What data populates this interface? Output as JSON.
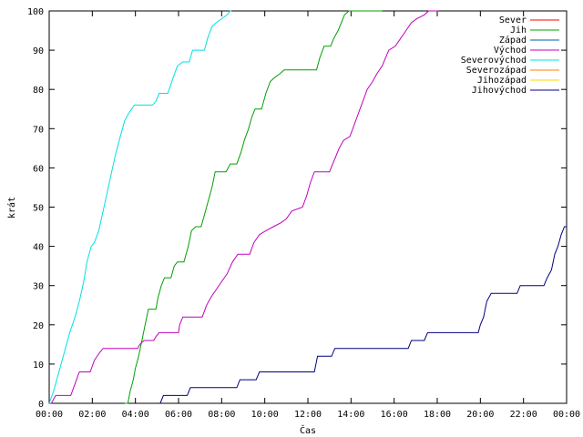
{
  "chart_data": {
    "type": "line",
    "title": "",
    "xlabel": "Čas",
    "ylabel": "krát",
    "xlim": [
      "00:00",
      "24:00"
    ],
    "ylim": [
      0,
      100
    ],
    "x_unit": "hours",
    "xticks": [
      {
        "value": 0,
        "label": "00:00"
      },
      {
        "value": 2,
        "label": "02:00"
      },
      {
        "value": 4,
        "label": "04:00"
      },
      {
        "value": 6,
        "label": "06:00"
      },
      {
        "value": 8,
        "label": "08:00"
      },
      {
        "value": 10,
        "label": "10:00"
      },
      {
        "value": 12,
        "label": "12:00"
      },
      {
        "value": 14,
        "label": "14:00"
      },
      {
        "value": 16,
        "label": "16:00"
      },
      {
        "value": 18,
        "label": "18:00"
      },
      {
        "value": 20,
        "label": "20:00"
      },
      {
        "value": 22,
        "label": "22:00"
      },
      {
        "value": 24,
        "label": "00:00"
      }
    ],
    "yticks": [
      0,
      10,
      20,
      30,
      40,
      50,
      60,
      70,
      80,
      90,
      100
    ],
    "grid": false,
    "legend_position": "top-right",
    "series": [
      {
        "name": "Sever",
        "color": "#ff0000",
        "points": []
      },
      {
        "name": "Jih",
        "color": "#00a000",
        "points": [
          [
            3.5,
            0
          ],
          [
            3.65,
            0
          ],
          [
            3.75,
            3
          ],
          [
            3.9,
            6
          ],
          [
            4.0,
            9
          ],
          [
            4.15,
            12
          ],
          [
            4.3,
            16
          ],
          [
            4.45,
            20
          ],
          [
            4.6,
            24
          ],
          [
            4.95,
            24
          ],
          [
            5.05,
            27
          ],
          [
            5.2,
            30
          ],
          [
            5.35,
            32
          ],
          [
            5.65,
            32
          ],
          [
            5.8,
            35
          ],
          [
            5.95,
            36
          ],
          [
            6.25,
            36
          ],
          [
            6.45,
            40
          ],
          [
            6.6,
            44
          ],
          [
            6.8,
            45
          ],
          [
            7.05,
            45
          ],
          [
            7.2,
            48
          ],
          [
            7.35,
            51
          ],
          [
            7.55,
            55
          ],
          [
            7.7,
            59
          ],
          [
            8.2,
            59
          ],
          [
            8.4,
            61
          ],
          [
            8.7,
            61
          ],
          [
            8.9,
            64
          ],
          [
            9.05,
            67
          ],
          [
            9.25,
            70
          ],
          [
            9.4,
            73
          ],
          [
            9.55,
            75
          ],
          [
            9.85,
            75
          ],
          [
            10.05,
            79
          ],
          [
            10.25,
            82
          ],
          [
            10.45,
            83
          ],
          [
            10.7,
            84
          ],
          [
            10.9,
            85
          ],
          [
            12.4,
            85
          ],
          [
            12.55,
            88
          ],
          [
            12.75,
            91
          ],
          [
            13.05,
            91
          ],
          [
            13.2,
            93
          ],
          [
            13.4,
            95
          ],
          [
            13.55,
            97
          ],
          [
            13.7,
            99
          ],
          [
            13.9,
            100
          ],
          [
            15.45,
            100
          ]
        ]
      },
      {
        "name": "Západ",
        "color": "#0060a0",
        "points": []
      },
      {
        "name": "Východ",
        "color": "#c000c0",
        "points": [
          [
            0.0,
            0
          ],
          [
            0.1,
            0
          ],
          [
            0.3,
            2
          ],
          [
            1.0,
            2
          ],
          [
            1.2,
            5
          ],
          [
            1.4,
            8
          ],
          [
            1.9,
            8
          ],
          [
            2.1,
            11
          ],
          [
            2.35,
            13
          ],
          [
            2.5,
            14
          ],
          [
            4.1,
            14
          ],
          [
            4.2,
            15
          ],
          [
            4.4,
            16
          ],
          [
            4.85,
            16
          ],
          [
            4.95,
            17
          ],
          [
            5.1,
            18
          ],
          [
            6.0,
            18
          ],
          [
            6.05,
            20
          ],
          [
            6.2,
            22
          ],
          [
            7.1,
            22
          ],
          [
            7.3,
            25
          ],
          [
            7.5,
            27
          ],
          [
            7.75,
            29
          ],
          [
            8.0,
            31
          ],
          [
            8.25,
            33
          ],
          [
            8.5,
            36
          ],
          [
            8.75,
            38
          ],
          [
            9.3,
            38
          ],
          [
            9.5,
            41
          ],
          [
            9.75,
            43
          ],
          [
            10.05,
            44
          ],
          [
            10.4,
            45
          ],
          [
            10.75,
            46
          ],
          [
            11.0,
            47
          ],
          [
            11.25,
            49
          ],
          [
            11.75,
            50
          ],
          [
            11.95,
            53
          ],
          [
            12.1,
            56
          ],
          [
            12.3,
            59
          ],
          [
            13.0,
            59
          ],
          [
            13.15,
            61
          ],
          [
            13.3,
            63
          ],
          [
            13.45,
            65
          ],
          [
            13.65,
            67
          ],
          [
            13.95,
            68
          ],
          [
            14.15,
            71
          ],
          [
            14.35,
            74
          ],
          [
            14.55,
            77
          ],
          [
            14.75,
            80
          ],
          [
            15.0,
            82
          ],
          [
            15.2,
            84
          ],
          [
            15.45,
            86
          ],
          [
            15.6,
            88
          ],
          [
            15.75,
            90
          ],
          [
            16.05,
            91
          ],
          [
            16.3,
            93
          ],
          [
            16.55,
            95
          ],
          [
            16.8,
            97
          ],
          [
            17.05,
            98
          ],
          [
            17.4,
            99
          ],
          [
            17.6,
            100
          ],
          [
            18.05,
            100
          ]
        ]
      },
      {
        "name": "Severovýchod",
        "color": "#00e0e0",
        "points": [
          [
            0.0,
            0
          ],
          [
            0.2,
            3
          ],
          [
            0.45,
            8
          ],
          [
            0.7,
            13
          ],
          [
            0.95,
            18
          ],
          [
            1.2,
            22
          ],
          [
            1.4,
            26
          ],
          [
            1.6,
            31
          ],
          [
            1.75,
            36
          ],
          [
            1.95,
            40
          ],
          [
            2.1,
            41
          ],
          [
            2.3,
            44
          ],
          [
            2.5,
            49
          ],
          [
            2.7,
            54
          ],
          [
            2.9,
            59
          ],
          [
            3.1,
            64
          ],
          [
            3.3,
            68
          ],
          [
            3.5,
            72
          ],
          [
            3.7,
            74
          ],
          [
            3.95,
            76
          ],
          [
            4.8,
            76
          ],
          [
            4.95,
            77
          ],
          [
            5.1,
            79
          ],
          [
            5.5,
            79
          ],
          [
            5.75,
            83
          ],
          [
            5.95,
            86
          ],
          [
            6.2,
            87
          ],
          [
            6.5,
            87
          ],
          [
            6.65,
            90
          ],
          [
            7.2,
            90
          ],
          [
            7.35,
            93
          ],
          [
            7.55,
            96
          ],
          [
            7.75,
            97
          ],
          [
            8.0,
            98
          ],
          [
            8.25,
            99
          ],
          [
            8.4,
            100
          ],
          [
            8.45,
            100
          ]
        ]
      },
      {
        "name": "Severozápad",
        "color": "#ff8000",
        "points": []
      },
      {
        "name": "Jihozápad",
        "color": "#ffd700",
        "points": []
      },
      {
        "name": "Jihovýchod",
        "color": "#000080",
        "points": [
          [
            5.15,
            0
          ],
          [
            5.3,
            2
          ],
          [
            6.4,
            2
          ],
          [
            6.55,
            4
          ],
          [
            8.7,
            4
          ],
          [
            8.85,
            6
          ],
          [
            9.6,
            6
          ],
          [
            9.75,
            8
          ],
          [
            12.3,
            8
          ],
          [
            12.45,
            12
          ],
          [
            13.1,
            12
          ],
          [
            13.25,
            14
          ],
          [
            16.65,
            14
          ],
          [
            16.8,
            16
          ],
          [
            17.4,
            16
          ],
          [
            17.55,
            18
          ],
          [
            19.9,
            18
          ],
          [
            20.0,
            20
          ],
          [
            20.15,
            22
          ],
          [
            20.3,
            26
          ],
          [
            20.5,
            28
          ],
          [
            21.7,
            28
          ],
          [
            21.85,
            30
          ],
          [
            22.95,
            30
          ],
          [
            23.1,
            32
          ],
          [
            23.3,
            34
          ],
          [
            23.45,
            38
          ],
          [
            23.6,
            40
          ],
          [
            23.75,
            43
          ],
          [
            23.9,
            45
          ],
          [
            24.0,
            45
          ]
        ]
      }
    ]
  }
}
